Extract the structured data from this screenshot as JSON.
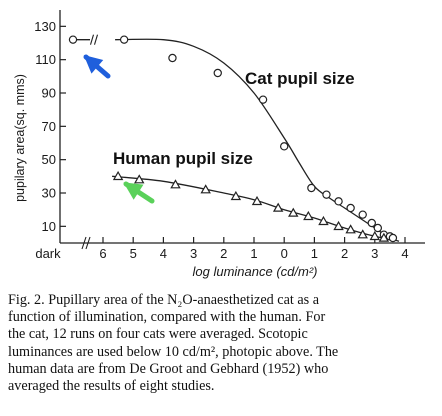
{
  "chart_data": {
    "type": "line",
    "title": "",
    "xlabel": "log luminance (cd/m²)",
    "ylabel": "pupilary area(sq. mms)",
    "x_tick_labels": [
      "dark",
      "6",
      "5",
      "4",
      "3",
      "2",
      "1",
      "0",
      "1",
      "2",
      "3",
      "4"
    ],
    "y_tick_labels": [
      "130",
      "110",
      "90",
      "70",
      "50",
      "30",
      "10"
    ],
    "y_ticks": [
      130,
      110,
      90,
      70,
      50,
      30,
      10
    ],
    "xlim": [
      -6.4,
      4.1
    ],
    "ylim": [
      0,
      135
    ],
    "grid": false,
    "legend": "none",
    "series": [
      {
        "name": "Cat pupil size",
        "marker": "circle",
        "points": [
          {
            "x": "dark",
            "y": 122
          },
          {
            "x": -5.3,
            "y": 122
          },
          {
            "x": -3.7,
            "y": 111
          },
          {
            "x": -2.2,
            "y": 102
          },
          {
            "x": -0.7,
            "y": 86
          },
          {
            "x": 0.0,
            "y": 58
          },
          {
            "x": 0.9,
            "y": 33
          },
          {
            "x": 1.4,
            "y": 29
          },
          {
            "x": 1.8,
            "y": 25
          },
          {
            "x": 2.2,
            "y": 21
          },
          {
            "x": 2.6,
            "y": 17
          },
          {
            "x": 2.9,
            "y": 12
          },
          {
            "x": 3.1,
            "y": 9
          },
          {
            "x": 3.3,
            "y": 5
          },
          {
            "x": 3.5,
            "y": 4
          },
          {
            "x": 3.6,
            "y": 3
          }
        ],
        "curve": [
          {
            "x": -5.6,
            "y": 122
          },
          {
            "x": -4.0,
            "y": 122
          },
          {
            "x": -3.0,
            "y": 118
          },
          {
            "x": -2.0,
            "y": 108
          },
          {
            "x": -1.0,
            "y": 90
          },
          {
            "x": 0.0,
            "y": 63
          },
          {
            "x": 0.5,
            "y": 48
          },
          {
            "x": 1.0,
            "y": 34
          },
          {
            "x": 1.5,
            "y": 27
          },
          {
            "x": 2.0,
            "y": 21
          },
          {
            "x": 2.5,
            "y": 15
          },
          {
            "x": 3.0,
            "y": 9
          },
          {
            "x": 3.5,
            "y": 3
          },
          {
            "x": 3.8,
            "y": 1
          }
        ]
      },
      {
        "name": "Human pupil size",
        "marker": "triangle",
        "points": [
          {
            "x": -5.5,
            "y": 40
          },
          {
            "x": -4.8,
            "y": 38
          },
          {
            "x": -3.6,
            "y": 35
          },
          {
            "x": -2.6,
            "y": 32
          },
          {
            "x": -1.6,
            "y": 28
          },
          {
            "x": -0.9,
            "y": 25
          },
          {
            "x": -0.2,
            "y": 21
          },
          {
            "x": 0.3,
            "y": 18
          },
          {
            "x": 0.8,
            "y": 16
          },
          {
            "x": 1.3,
            "y": 13
          },
          {
            "x": 1.8,
            "y": 10
          },
          {
            "x": 2.2,
            "y": 8
          },
          {
            "x": 2.6,
            "y": 5
          },
          {
            "x": 3.0,
            "y": 4
          },
          {
            "x": 3.3,
            "y": 3
          }
        ],
        "curve": [
          {
            "x": -5.7,
            "y": 40
          },
          {
            "x": -4.0,
            "y": 37
          },
          {
            "x": -2.0,
            "y": 30
          },
          {
            "x": -1.0,
            "y": 26
          },
          {
            "x": 0.0,
            "y": 20
          },
          {
            "x": 1.0,
            "y": 15
          },
          {
            "x": 2.0,
            "y": 9
          },
          {
            "x": 3.0,
            "y": 4
          },
          {
            "x": 3.6,
            "y": 2
          }
        ]
      }
    ],
    "annotations": [
      {
        "text": "Cat pupil size",
        "arrow_color": "#1f5fdc",
        "arrow_target": "cat dark-adapted point"
      },
      {
        "text": "Human pupil size",
        "arrow_color": "#5ad15a",
        "arrow_target": "human first point"
      }
    ]
  },
  "caption": {
    "lines": [
      "Fig. 2. Pupillary area of the N₂O-anaesthetized cat as a",
      "function of illumination, compared with the human. For",
      "the cat, 12 runs on four cats were averaged. Scotopic",
      "luminances are used below 10 cd/m², photopic above. The",
      "human data are from De Groot and Gebhard (1952) who",
      "averaged the results of eight studies."
    ]
  },
  "colors": {
    "ink": "#222222",
    "arrow_blue": "#1f5fdc",
    "arrow_green": "#5ad15a"
  }
}
